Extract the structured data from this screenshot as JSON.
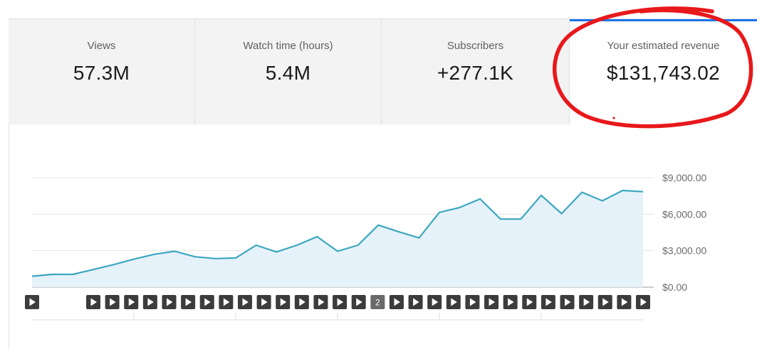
{
  "metric_tabs": [
    {
      "label": "Views",
      "value": "57.3M"
    },
    {
      "label": "Watch time (hours)",
      "value": "5.4M"
    },
    {
      "label": "Subscribers",
      "value": "+277.1K"
    },
    {
      "label": "Your estimated revenue",
      "value": "$131,743.02",
      "selected": true
    }
  ],
  "colors": {
    "line": "#3ba7c0",
    "area": "#e6f2fa",
    "selected_tab_indicator": "#1a73e8",
    "annotation_circle": "#e8181b",
    "marker_button": "#3c3c3c"
  },
  "annotation": {
    "type": "hand-drawn circle",
    "target": "Your estimated revenue"
  },
  "chart_data": {
    "type": "area",
    "title": "",
    "xlabel": "",
    "ylabel": "",
    "ylim": [
      0,
      9000
    ],
    "y_ticks": [
      "$9,000.00",
      "$6,000.00",
      "$3,000.00",
      "$0.00"
    ],
    "grid": true,
    "series": [
      {
        "values": [
          900,
          1050,
          1050,
          1450,
          1850,
          2300,
          2700,
          2950,
          2500,
          2350,
          2400,
          3450,
          2900,
          3450,
          4150,
          2950,
          3450,
          5100,
          4550,
          4050,
          6150,
          6550,
          7250,
          5600,
          5600,
          7550,
          6050,
          7800,
          7100,
          7950,
          7850
        ]
      }
    ]
  },
  "timeline_markers": [
    {
      "kind": "play"
    },
    {
      "kind": "play"
    },
    {
      "kind": "play"
    },
    {
      "kind": "play"
    },
    {
      "kind": "play"
    },
    {
      "kind": "play"
    },
    {
      "kind": "play"
    },
    {
      "kind": "play"
    },
    {
      "kind": "play"
    },
    {
      "kind": "play"
    },
    {
      "kind": "play"
    },
    {
      "kind": "play"
    },
    {
      "kind": "play"
    },
    {
      "kind": "play"
    },
    {
      "kind": "play"
    },
    {
      "kind": "count",
      "label": "2"
    },
    {
      "kind": "play"
    },
    {
      "kind": "play"
    },
    {
      "kind": "play"
    },
    {
      "kind": "play"
    },
    {
      "kind": "play"
    },
    {
      "kind": "play"
    },
    {
      "kind": "play"
    },
    {
      "kind": "play"
    },
    {
      "kind": "play"
    },
    {
      "kind": "play"
    },
    {
      "kind": "play"
    },
    {
      "kind": "play"
    },
    {
      "kind": "play"
    },
    {
      "kind": "play"
    }
  ],
  "first_marker": {
    "kind": "play"
  }
}
